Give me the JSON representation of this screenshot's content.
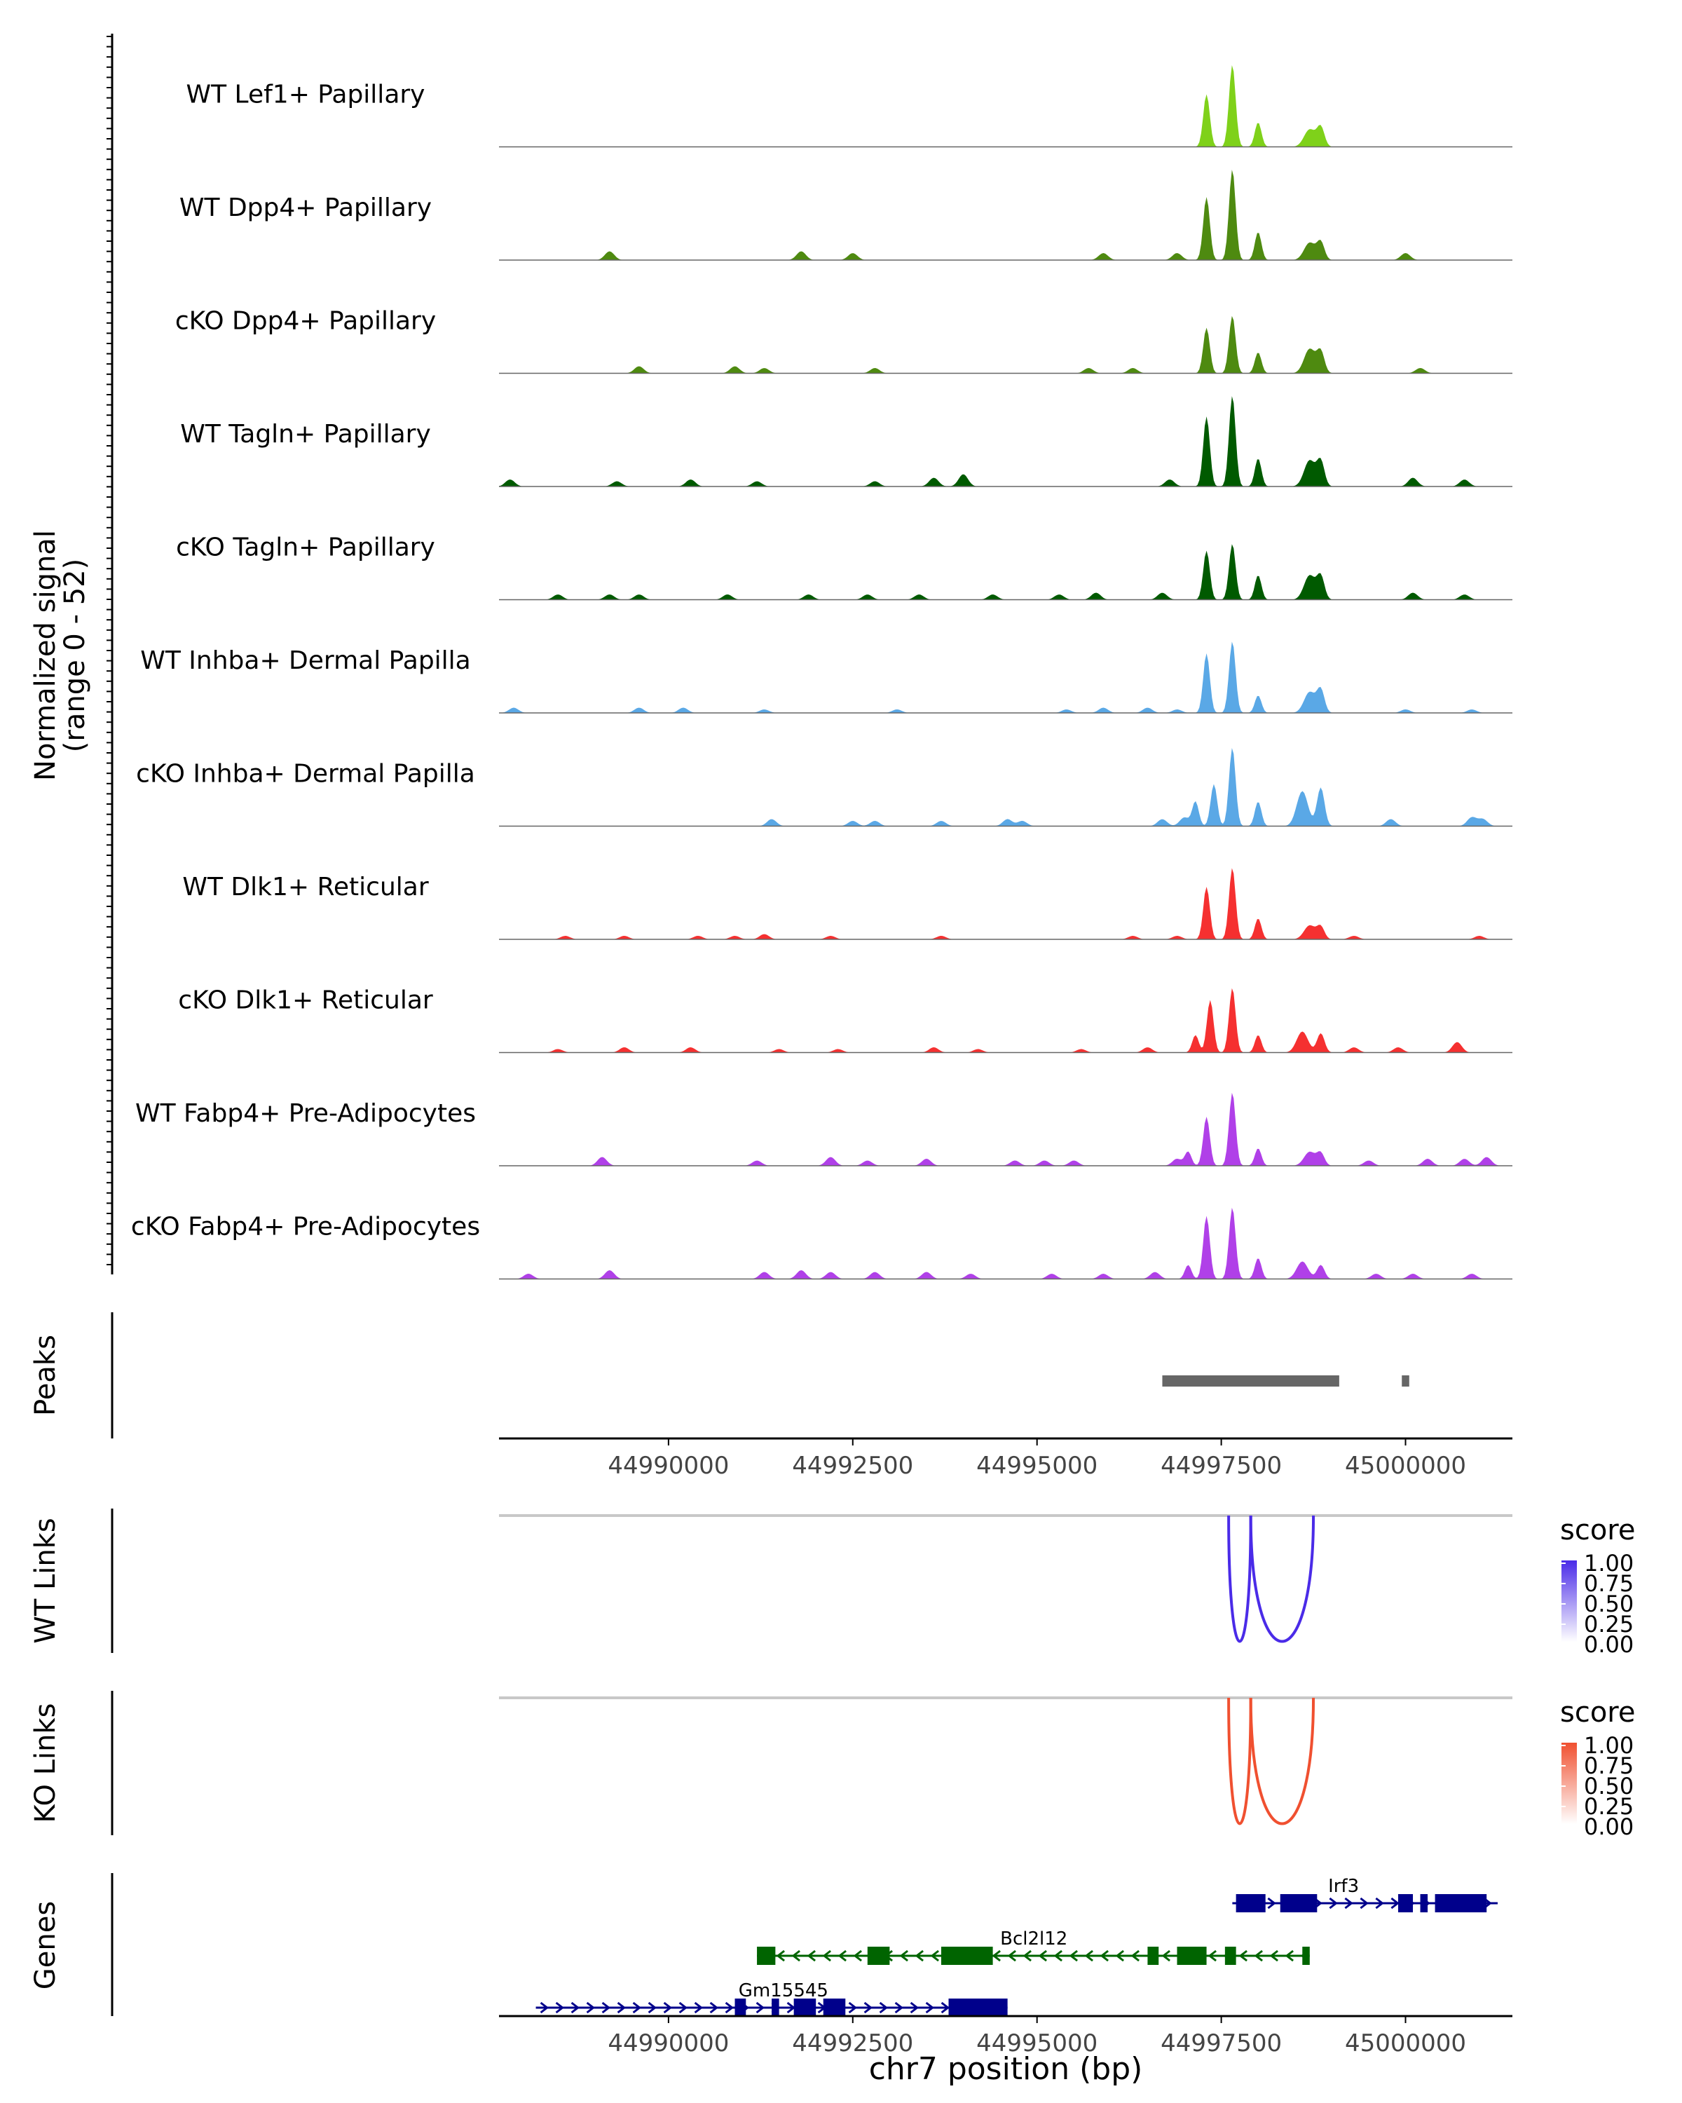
{
  "chart_data": {
    "type": "area",
    "title": "",
    "region": {
      "chrom": "chr7",
      "start": 44987700,
      "end": 45001450
    },
    "coverage": {
      "ylabel": "Normalized signal",
      "ylabel_range": "(range 0 - 52)",
      "ylim": [
        0,
        52
      ],
      "tracks": [
        {
          "name": "WT Lef1+ Papillary",
          "color": "#7FD11A",
          "noise": [],
          "peaks": [
            [
              44997300,
              30,
              7
            ],
            [
              44997650,
              47,
              7
            ],
            [
              44998000,
              14,
              7
            ],
            [
              44998700,
              10,
              12
            ],
            [
              44998850,
              11,
              8
            ]
          ]
        },
        {
          "name": "WT Dpp4+ Papillary",
          "color": "#4E8A10",
          "noise": [
            [
              44989200,
              5
            ],
            [
              44991800,
              5
            ],
            [
              44992500,
              4
            ],
            [
              44995900,
              4
            ],
            [
              44996900,
              4
            ],
            [
              45000000,
              4
            ]
          ],
          "peaks": [
            [
              44997300,
              36,
              7
            ],
            [
              44997650,
              52,
              7
            ],
            [
              44998000,
              16,
              7
            ],
            [
              44998700,
              10,
              12
            ],
            [
              44998850,
              10,
              8
            ]
          ]
        },
        {
          "name": "cKO Dpp4+ Papillary",
          "color": "#4E8A10",
          "noise": [
            [
              44989600,
              4
            ],
            [
              44990900,
              4
            ],
            [
              44991300,
              3
            ],
            [
              44992800,
              3
            ],
            [
              44995700,
              3
            ],
            [
              44996300,
              3
            ],
            [
              45000200,
              3
            ]
          ],
          "peaks": [
            [
              44997300,
              26,
              7
            ],
            [
              44997650,
              33,
              7
            ],
            [
              44998000,
              12,
              7
            ],
            [
              44998700,
              14,
              12
            ],
            [
              44998850,
              12,
              8
            ]
          ]
        },
        {
          "name": "WT Tagln+ Papillary",
          "color": "#005A00",
          "noise": [
            [
              44987850,
              4
            ],
            [
              44989300,
              3
            ],
            [
              44990300,
              4
            ],
            [
              44991200,
              3
            ],
            [
              44992800,
              3
            ],
            [
              44993600,
              5
            ],
            [
              44994000,
              7
            ],
            [
              44996800,
              4
            ],
            [
              45000100,
              5
            ],
            [
              45000800,
              4
            ]
          ],
          "peaks": [
            [
              44997300,
              40,
              7
            ],
            [
              44997650,
              52,
              7
            ],
            [
              44998000,
              16,
              7
            ],
            [
              44998700,
              15,
              12
            ],
            [
              44998850,
              14,
              8
            ]
          ]
        },
        {
          "name": "cKO Tagln+ Papillary",
          "color": "#005A00",
          "noise": [
            [
              44988500,
              3
            ],
            [
              44989200,
              3
            ],
            [
              44989600,
              3
            ],
            [
              44990800,
              3
            ],
            [
              44991900,
              3
            ],
            [
              44992700,
              3
            ],
            [
              44993400,
              3
            ],
            [
              44994400,
              3
            ],
            [
              44995300,
              3
            ],
            [
              44995800,
              4
            ],
            [
              44996700,
              4
            ],
            [
              45000100,
              4
            ],
            [
              45000800,
              3
            ]
          ],
          "peaks": [
            [
              44997300,
              28,
              7
            ],
            [
              44997650,
              32,
              7
            ],
            [
              44998000,
              14,
              7
            ],
            [
              44998700,
              14,
              12
            ],
            [
              44998850,
              13,
              8
            ]
          ]
        },
        {
          "name": "WT Inhba+ Dermal Papilla",
          "color": "#5AA8E6",
          "noise": [
            [
              44987900,
              3
            ],
            [
              44989600,
              3
            ],
            [
              44990200,
              3
            ],
            [
              44991300,
              2
            ],
            [
              44993100,
              2
            ],
            [
              44995400,
              2
            ],
            [
              44995900,
              3
            ],
            [
              44996500,
              3
            ],
            [
              44996900,
              2
            ],
            [
              45000000,
              2
            ],
            [
              45000900,
              2
            ]
          ],
          "peaks": [
            [
              44997300,
              34,
              7
            ],
            [
              44997650,
              41,
              7
            ],
            [
              44998000,
              10,
              7
            ],
            [
              44998700,
              12,
              12
            ],
            [
              44998850,
              13,
              8
            ]
          ]
        },
        {
          "name": "cKO Inhba+ Dermal Papilla",
          "color": "#5AA8E6",
          "noise": [
            [
              44991400,
              4
            ],
            [
              44992500,
              3
            ],
            [
              44992800,
              3
            ],
            [
              44993700,
              3
            ],
            [
              44994600,
              4
            ],
            [
              44994800,
              3
            ],
            [
              44996700,
              4
            ],
            [
              44997000,
              5
            ],
            [
              44999800,
              4
            ],
            [
              45000900,
              5
            ],
            [
              45001050,
              4
            ]
          ],
          "peaks": [
            [
              44997150,
              14,
              7
            ],
            [
              44997400,
              24,
              7
            ],
            [
              44997650,
              45,
              7
            ],
            [
              44998000,
              14,
              7
            ],
            [
              44998600,
              20,
              12
            ],
            [
              44998850,
              22,
              8
            ]
          ]
        },
        {
          "name": "WT Dlk1+ Reticular",
          "color": "#F53030",
          "noise": [
            [
              44988600,
              2
            ],
            [
              44989400,
              2
            ],
            [
              44990400,
              2
            ],
            [
              44990900,
              2
            ],
            [
              44991300,
              3
            ],
            [
              44992200,
              2
            ],
            [
              44993700,
              2
            ],
            [
              44996300,
              2
            ],
            [
              44996900,
              2
            ],
            [
              44999300,
              2
            ],
            [
              45001000,
              2
            ]
          ],
          "peaks": [
            [
              44997300,
              30,
              7
            ],
            [
              44997650,
              41,
              7
            ],
            [
              44998000,
              12,
              7
            ],
            [
              44998700,
              8,
              12
            ],
            [
              44998850,
              7,
              8
            ]
          ]
        },
        {
          "name": "cKO Dlk1+ Reticular",
          "color": "#F53030",
          "noise": [
            [
              44988500,
              2
            ],
            [
              44989400,
              3
            ],
            [
              44990300,
              3
            ],
            [
              44991500,
              2
            ],
            [
              44992300,
              2
            ],
            [
              44993600,
              3
            ],
            [
              44994200,
              2
            ],
            [
              44995600,
              2
            ],
            [
              44996500,
              3
            ],
            [
              44999300,
              3
            ],
            [
              44999900,
              3
            ],
            [
              45000700,
              6
            ]
          ],
          "peaks": [
            [
              44997150,
              10,
              7
            ],
            [
              44997350,
              30,
              7
            ],
            [
              44997650,
              37,
              7
            ],
            [
              44998000,
              10,
              7
            ],
            [
              44998600,
              12,
              12
            ],
            [
              44998850,
              11,
              8
            ]
          ]
        },
        {
          "name": "WT Fabp4+ Pre-Adipocytes",
          "color": "#B040E8",
          "noise": [
            [
              44989100,
              5
            ],
            [
              44991200,
              3
            ],
            [
              44992200,
              5
            ],
            [
              44992700,
              3
            ],
            [
              44993500,
              4
            ],
            [
              44994700,
              3
            ],
            [
              44995100,
              3
            ],
            [
              44995500,
              3
            ],
            [
              44996900,
              4
            ],
            [
              44999500,
              3
            ],
            [
              45000300,
              4
            ],
            [
              45000800,
              4
            ],
            [
              45001100,
              5
            ]
          ],
          "peaks": [
            [
              44997050,
              8,
              7
            ],
            [
              44997300,
              28,
              7
            ],
            [
              44997650,
              42,
              7
            ],
            [
              44998000,
              10,
              7
            ],
            [
              44998700,
              8,
              12
            ],
            [
              44998850,
              7,
              8
            ]
          ]
        },
        {
          "name": "cKO Fabp4+ Pre-Adipocytes",
          "color": "#B040E8",
          "noise": [
            [
              44988100,
              3
            ],
            [
              44989200,
              5
            ],
            [
              44991300,
              4
            ],
            [
              44991800,
              5
            ],
            [
              44992200,
              4
            ],
            [
              44992800,
              4
            ],
            [
              44993500,
              4
            ],
            [
              44994100,
              3
            ],
            [
              44995200,
              3
            ],
            [
              44995900,
              3
            ],
            [
              44996600,
              4
            ],
            [
              44999600,
              3
            ],
            [
              45000100,
              3
            ],
            [
              45000900,
              3
            ]
          ],
          "peaks": [
            [
              44997050,
              8,
              7
            ],
            [
              44997300,
              36,
              7
            ],
            [
              44997650,
              41,
              7
            ],
            [
              44998000,
              12,
              7
            ],
            [
              44998600,
              10,
              12
            ],
            [
              44998850,
              8,
              8
            ]
          ]
        }
      ]
    },
    "peaks_track": {
      "label": "Peaks",
      "color": "#666666",
      "intervals": [
        [
          44996700,
          44999100
        ],
        [
          44999950,
          45000050
        ]
      ]
    },
    "axis": {
      "ticks": [
        44990000,
        44992500,
        44995000,
        44997500,
        45000000
      ],
      "tick_labels": [
        "44990000",
        "44992500",
        "44995000",
        "44997500",
        "45000000"
      ]
    },
    "links": [
      {
        "label": "WT Links",
        "color": "#4A2BE8",
        "legend_title": "score",
        "legend_ticks": [
          "1.00",
          "0.75",
          "0.50",
          "0.25",
          "0.00"
        ],
        "arcs": [
          [
            44997600,
            44997900,
            1.0
          ],
          [
            44997900,
            44998750,
            1.0
          ]
        ]
      },
      {
        "label": "KO Links",
        "color": "#F05030",
        "legend_title": "score",
        "legend_ticks": [
          "1.00",
          "0.75",
          "0.50",
          "0.25",
          "0.00"
        ],
        "arcs": [
          [
            44997600,
            44997900,
            1.0
          ],
          [
            44997900,
            44998750,
            1.0
          ]
        ]
      }
    ],
    "genes_track": {
      "label": "Genes",
      "xlabel": "chr7 position (bp)",
      "genes": [
        {
          "name": "Irf3",
          "strand": "+",
          "color": "#00008B",
          "start": 44997650,
          "end": 45001250,
          "exons": [
            [
              44997700,
              44998100
            ],
            [
              44998300,
              44998800
            ],
            [
              44999900,
              45000100
            ],
            [
              45000200,
              45000300
            ],
            [
              45000400,
              45001100
            ]
          ],
          "label_x": 44998950
        },
        {
          "name": "Bcl2l12",
          "strand": "-",
          "color": "#006400",
          "start": 44991200,
          "end": 44998700,
          "exons": [
            [
              44991200,
              44991450
            ],
            [
              44992700,
              44993000
            ],
            [
              44993700,
              44994400
            ],
            [
              44996500,
              44996650
            ],
            [
              44996900,
              44997300
            ],
            [
              44997550,
              44997700
            ],
            [
              44998600,
              44998700
            ]
          ],
          "label_x": 44994500
        },
        {
          "name": "Gm15545",
          "strand": "+",
          "color": "#00008B",
          "start": 44988200,
          "end": 44994600,
          "exons": [
            [
              44990900,
              44991050
            ],
            [
              44991400,
              44991500
            ],
            [
              44991700,
              44992000
            ],
            [
              44992100,
              44992400
            ],
            [
              44993800,
              44994600
            ]
          ],
          "label_x": 44990950
        }
      ]
    }
  }
}
